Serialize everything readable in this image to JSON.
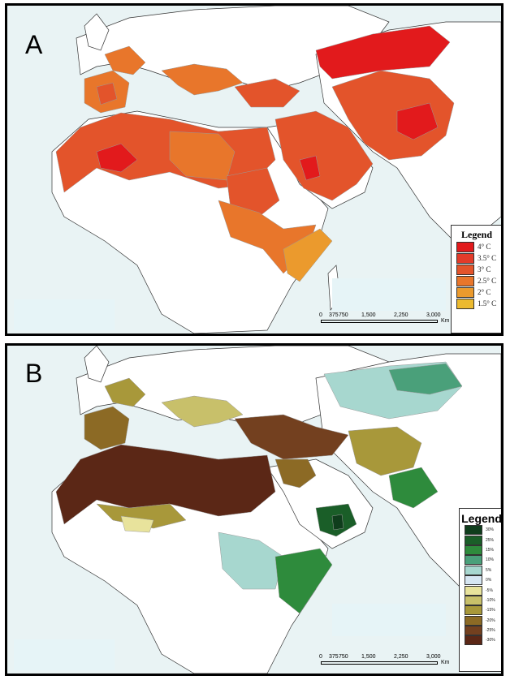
{
  "panels": [
    {
      "letter": "A",
      "legend": {
        "title": "Legend",
        "items": [
          {
            "label": "4° C",
            "color": "#e21a1c"
          },
          {
            "label": "3.5° C",
            "color": "#e23b2a"
          },
          {
            "label": "3° C",
            "color": "#e3542b"
          },
          {
            "label": "2.5° C",
            "color": "#e8762b"
          },
          {
            "label": "2° C",
            "color": "#eb9a2d"
          },
          {
            "label": "1.5° C",
            "color": "#ecba2f"
          }
        ]
      },
      "scale": {
        "ticks": [
          "0",
          "375",
          "750",
          "1,500",
          "2,250",
          "3,000"
        ],
        "unit": "Km"
      }
    },
    {
      "letter": "B",
      "legend": {
        "title": "Legend",
        "items": [
          {
            "label": "30%",
            "color": "#0f3d1c"
          },
          {
            "label": "25%",
            "color": "#1a5e28"
          },
          {
            "label": "15%",
            "color": "#2e8b3c"
          },
          {
            "label": "10%",
            "color": "#4aa07a"
          },
          {
            "label": "5%",
            "color": "#a7d7cf"
          },
          {
            "label": "0%",
            "color": "#d6e6f2"
          },
          {
            "label": "-5%",
            "color": "#e8e39c"
          },
          {
            "label": "-10%",
            "color": "#c8c06a"
          },
          {
            "label": "-15%",
            "color": "#a8983a"
          },
          {
            "label": "-20%",
            "color": "#8c6a25"
          },
          {
            "label": "-25%",
            "color": "#73401f"
          },
          {
            "label": "-30%",
            "color": "#5b2716"
          }
        ]
      },
      "scale": {
        "ticks": [
          "0",
          "375",
          "750",
          "1,500",
          "2,250",
          "3,000"
        ],
        "unit": "Km"
      }
    }
  ]
}
